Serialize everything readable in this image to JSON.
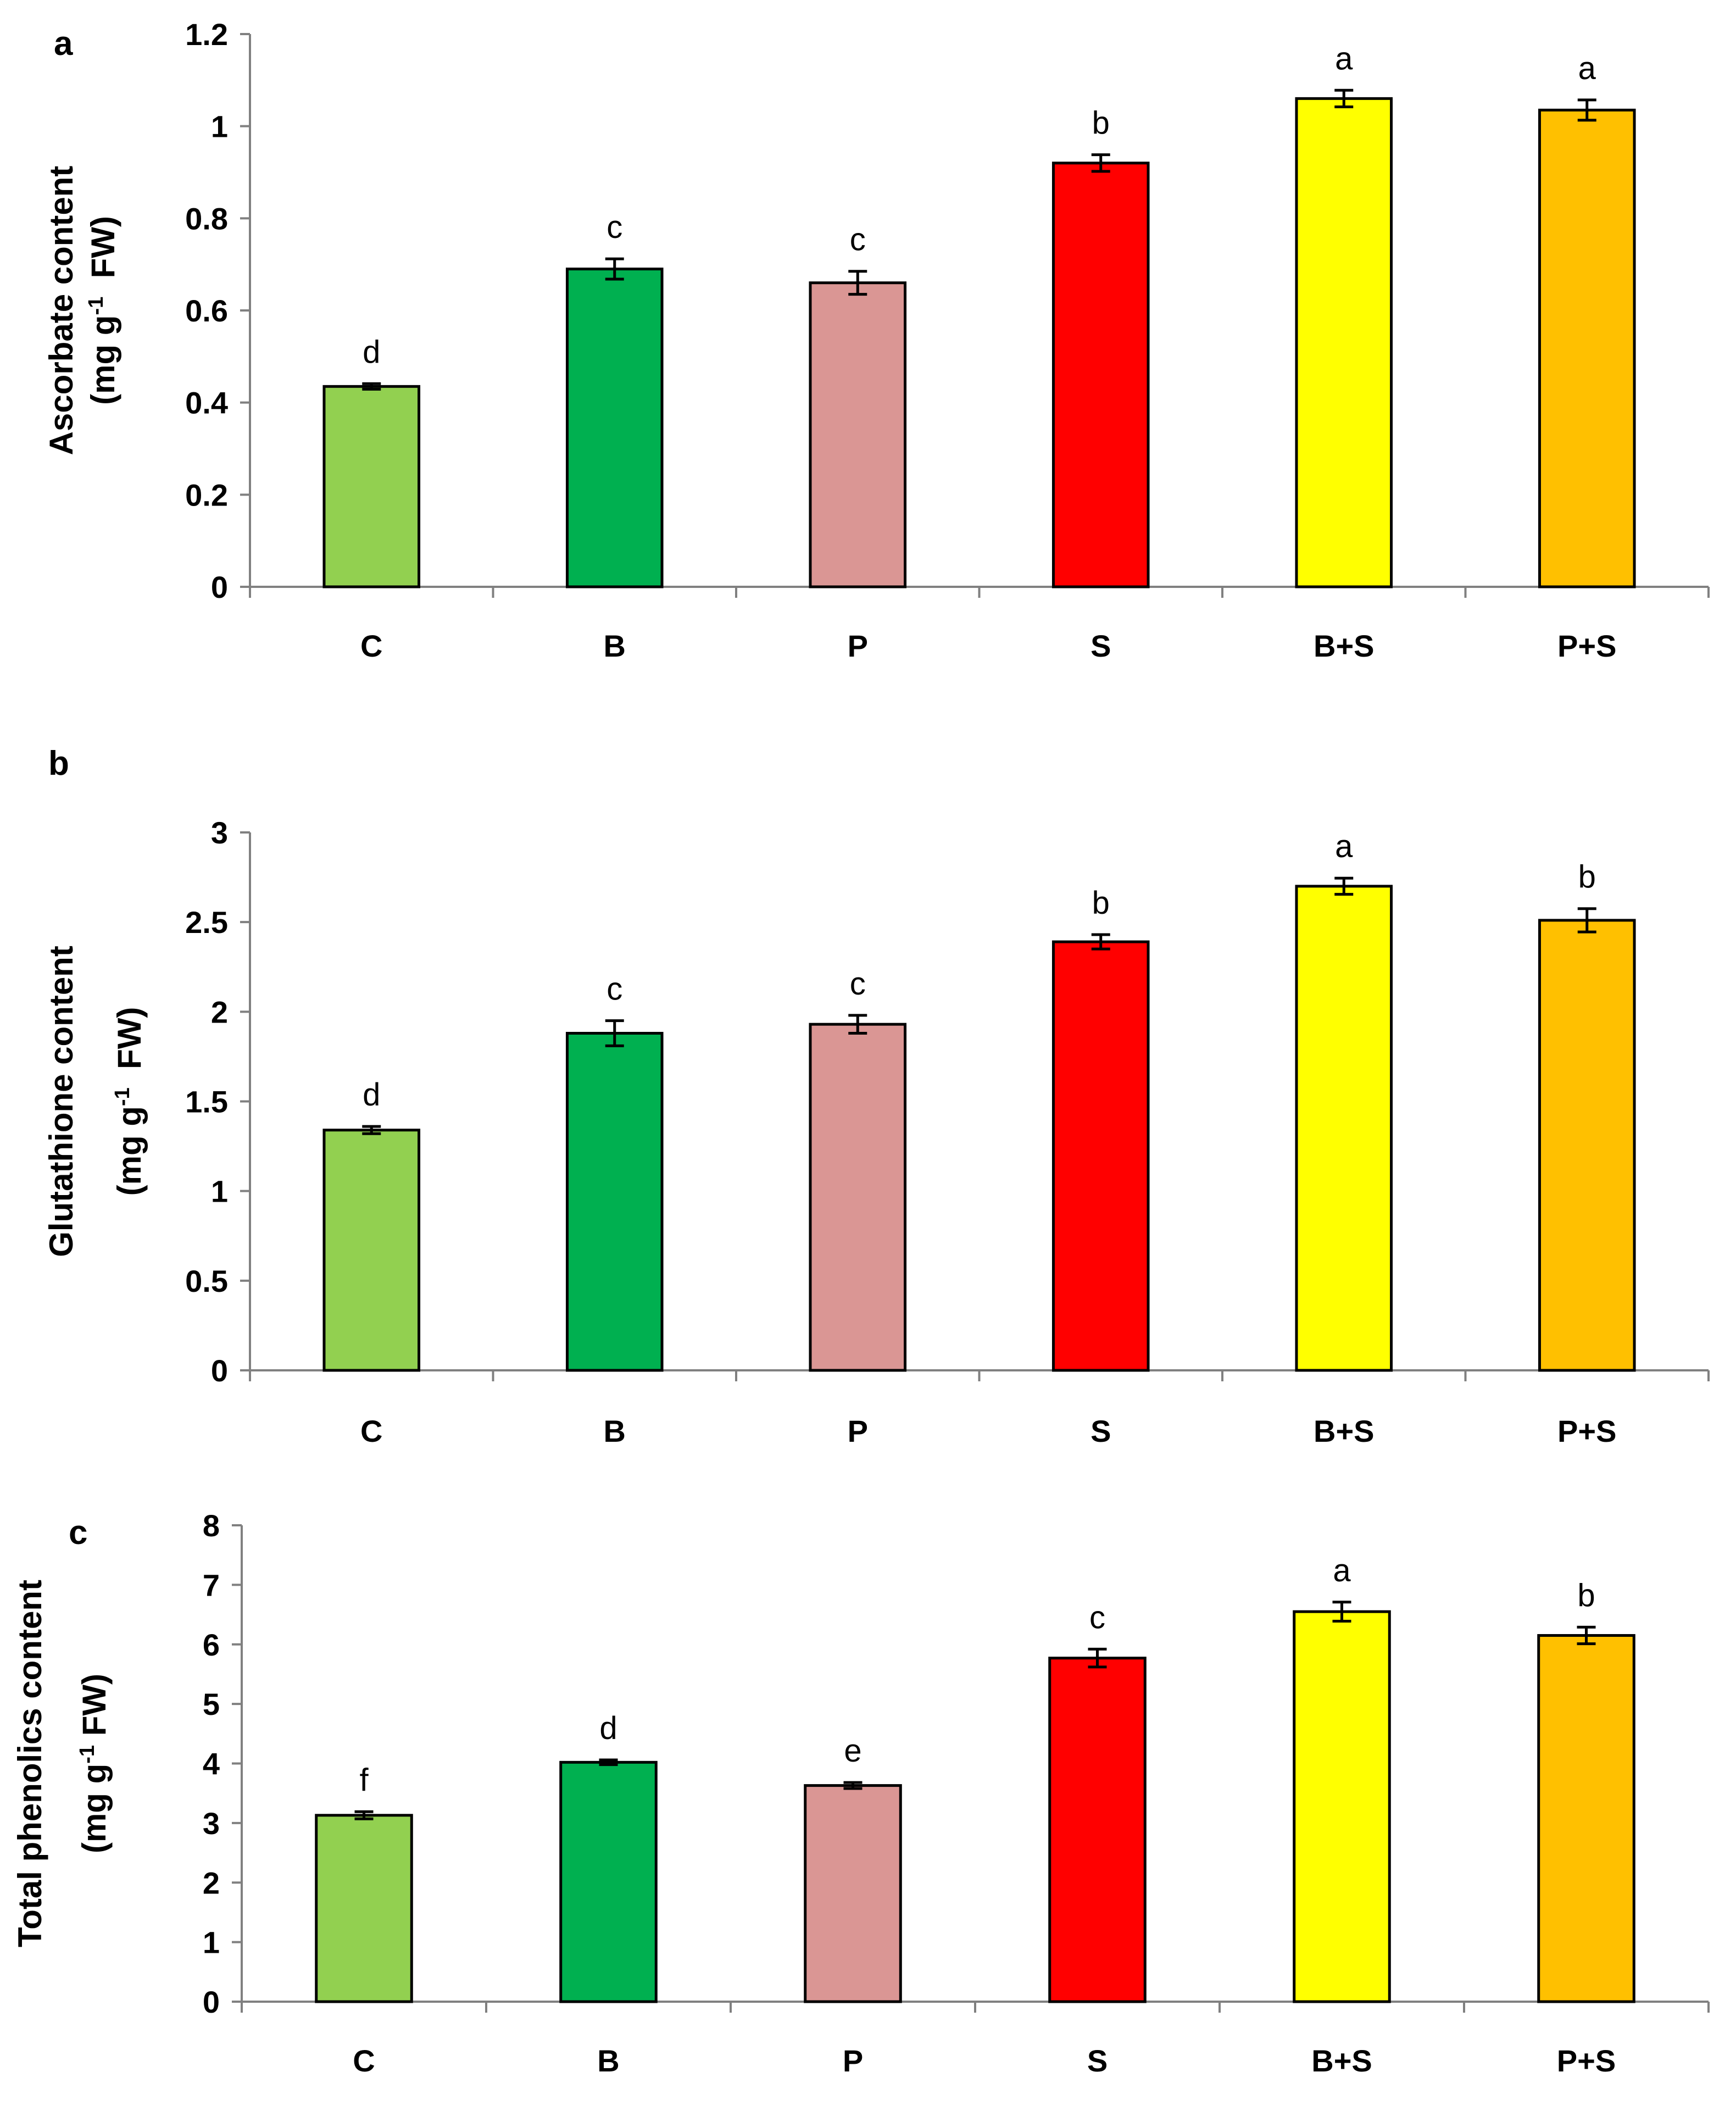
{
  "chart_data": [
    {
      "type": "bar",
      "panel": "a",
      "categories": [
        "C",
        "B",
        "P",
        "S",
        "B+S",
        "P+S"
      ],
      "values": [
        0.435,
        0.69,
        0.66,
        0.92,
        1.06,
        1.035
      ],
      "errors": [
        0.006,
        0.022,
        0.025,
        0.018,
        0.018,
        0.022
      ],
      "significance": [
        "d",
        "c",
        "c",
        "b",
        "a",
        "a"
      ],
      "colors": [
        "#92d050",
        "#00b050",
        "#da9694",
        "#ff0000",
        "#ffff00",
        "#ffc000"
      ],
      "ylabel_line1": "Ascorbate content",
      "ylabel_line2_pre": "(mg g",
      "ylabel_line2_sup": "-1",
      "ylabel_line2_post": "  FW)",
      "ylim": [
        0,
        1.2
      ],
      "yticks": [
        0,
        0.2,
        0.4,
        0.6,
        0.8,
        1,
        1.2
      ],
      "ytick_labels": [
        "0",
        "0.2",
        "0.4",
        "0.6",
        "0.8",
        "1",
        "1.2"
      ]
    },
    {
      "type": "bar",
      "panel": "b",
      "categories": [
        "C",
        "B",
        "P",
        "S",
        "B+S",
        "P+S"
      ],
      "values": [
        1.34,
        1.88,
        1.93,
        2.39,
        2.7,
        2.51
      ],
      "errors": [
        0.02,
        0.07,
        0.05,
        0.04,
        0.045,
        0.065
      ],
      "significance": [
        "d",
        "c",
        "c",
        "b",
        "a",
        "b"
      ],
      "colors": [
        "#92d050",
        "#00b050",
        "#da9694",
        "#ff0000",
        "#ffff00",
        "#ffc000"
      ],
      "ylabel_line1": "Glutathione content",
      "ylabel_line2_pre": "(mg g",
      "ylabel_line2_sup": "-1",
      "ylabel_line2_post": "  FW)",
      "ylim": [
        0,
        3
      ],
      "yticks": [
        0,
        0.5,
        1,
        1.5,
        2,
        2.5,
        3
      ],
      "ytick_labels": [
        "0",
        "0.5",
        "1",
        "1.5",
        "2",
        "2.5",
        "3"
      ]
    },
    {
      "type": "bar",
      "panel": "c",
      "categories": [
        "C",
        "B",
        "P",
        "S",
        "B+S",
        "P+S"
      ],
      "values": [
        3.13,
        4.02,
        3.63,
        5.77,
        6.55,
        6.15
      ],
      "errors": [
        0.06,
        0.04,
        0.05,
        0.15,
        0.16,
        0.14
      ],
      "significance": [
        "f",
        "d",
        "e",
        "c",
        "a",
        "b"
      ],
      "colors": [
        "#92d050",
        "#00b050",
        "#da9694",
        "#ff0000",
        "#ffff00",
        "#ffc000"
      ],
      "ylabel_line1": "Total phenolics content",
      "ylabel_line2_pre": "(mg g",
      "ylabel_line2_sup": "-1",
      "ylabel_line2_post": " FW)",
      "ylim": [
        0,
        8
      ],
      "yticks": [
        0,
        1,
        2,
        3,
        4,
        5,
        6,
        7,
        8
      ],
      "ytick_labels": [
        "0",
        "1",
        "2",
        "3",
        "4",
        "5",
        "6",
        "7",
        "8"
      ]
    }
  ]
}
